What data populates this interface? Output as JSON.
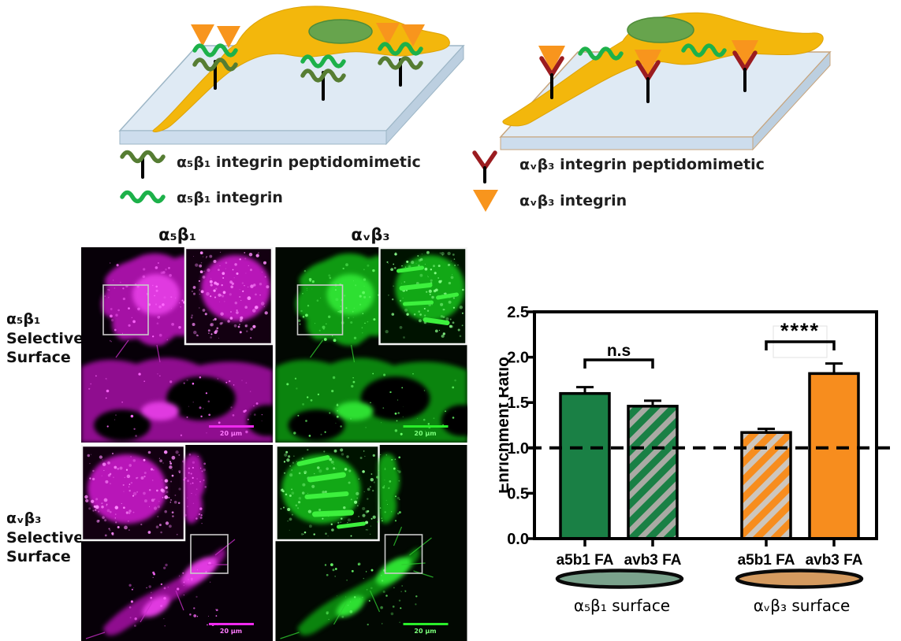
{
  "figure": {
    "schematic": {
      "left_legend": [
        {
          "symbol": "a5b1-peptidomimetic-icon",
          "label": "α₅β₁ integrin peptidomimetic"
        },
        {
          "symbol": "a5b1-integrin-icon",
          "label": "α₅β₁ integrin"
        }
      ],
      "right_legend": [
        {
          "symbol": "avb3-peptidomimetic-icon",
          "label": "αᵥβ₃ integrin peptidomimetic"
        },
        {
          "symbol": "avb3-integrin-icon",
          "label": "αᵥβ₃ integrin"
        }
      ],
      "colors": {
        "cell": "#f3b70c",
        "nucleus": "#67a44d",
        "slab": "#dfeaf4",
        "a5b1_peptidomimetic": "#567d33",
        "a5b1_integrin": "#1db14a",
        "avb3_peptidomimetic": "#9b1c20",
        "avb3_integrin": "#f8951d"
      }
    },
    "microscopy": {
      "column_headers": [
        "α₅β₁",
        "αᵥβ₃"
      ],
      "row_labels": [
        "α₅β₁\nSelective\nSurface",
        "αᵥβ₃\nSelective\nSurface"
      ],
      "scale_bar_label": "20 µm",
      "channel_colors": {
        "magenta": "#cc00cc",
        "green": "#00c000"
      }
    }
  },
  "chart_data": {
    "type": "bar",
    "title": "",
    "xlabel": "",
    "ylabel": "Enrichment Ratio",
    "ylim": [
      0,
      2.5
    ],
    "yticks": [
      0,
      0.5,
      1,
      1.5,
      2,
      2.5
    ],
    "grid": false,
    "categories": [
      "a5b1 FA",
      "avb3 FA",
      "a5b1 FA",
      "avb3 FA"
    ],
    "values": [
      1.6,
      1.46,
      1.17,
      1.82
    ],
    "errors": [
      0.07,
      0.06,
      0.04,
      0.11
    ],
    "bar_styles": [
      "solid-green",
      "hatched-green",
      "hatched-orange",
      "solid-orange"
    ],
    "bar_colors": {
      "green": "#1a8045",
      "orange": "#f78d1e",
      "hatch_stripe": "#a9aaa4"
    },
    "reference_line": 1.0,
    "annotations": [
      {
        "text": "n.s",
        "between": [
          0,
          1
        ],
        "y": 1.97,
        "box": false
      },
      {
        "text": "****",
        "between": [
          2,
          3
        ],
        "y": 2.17,
        "box": true
      }
    ],
    "groups": [
      {
        "label": "α₅β₁ surface",
        "color": "#7aa28c"
      },
      {
        "label": "αᵥβ₃ surface",
        "color": "#d49a5f"
      }
    ]
  }
}
